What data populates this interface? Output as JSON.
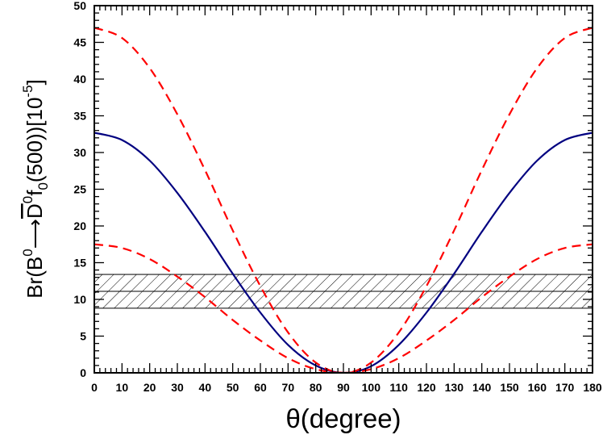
{
  "chart_data": {
    "type": "line",
    "title": "",
    "xlabel": "θ(degree)",
    "ylabel": {
      "prefix": "Br(B",
      "sup1": "0",
      "arrow": "⟶",
      "dbar": "D",
      "sup2": "0",
      "f": "f",
      "sub": "0",
      "mass": "(500))[10",
      "exp": "-5",
      "close": "]"
    },
    "xlim": [
      0,
      180
    ],
    "ylim": [
      0,
      50
    ],
    "xticks": [
      "0",
      "10",
      "20",
      "30",
      "40",
      "50",
      "60",
      "70",
      "80",
      "90",
      "100",
      "110",
      "120",
      "130",
      "140",
      "150",
      "160",
      "170",
      "180"
    ],
    "yticks": [
      "0",
      "5",
      "10",
      "15",
      "20",
      "25",
      "30",
      "35",
      "40",
      "45",
      "50"
    ],
    "grid": false,
    "legend": "none",
    "x": [
      0,
      10,
      20,
      30,
      40,
      50,
      60,
      70,
      80,
      90,
      100,
      110,
      120,
      130,
      140,
      150,
      160,
      170,
      180
    ],
    "series": [
      {
        "style": "solid",
        "color": "#000080",
        "values": [
          32.7,
          31.7,
          28.9,
          24.5,
          19.2,
          13.5,
          8.2,
          3.8,
          1.0,
          0,
          0.9,
          3.8,
          8.2,
          13.5,
          19.2,
          24.5,
          28.9,
          31.7,
          32.7
        ]
      },
      {
        "style": "dashed",
        "color": "#ff0000",
        "values": [
          47.0,
          45.6,
          41.5,
          35.2,
          27.6,
          19.4,
          11.8,
          5.5,
          1.4,
          0,
          1.4,
          5.5,
          11.8,
          19.4,
          27.6,
          35.2,
          41.5,
          45.6,
          47.0
        ]
      },
      {
        "style": "dashed",
        "color": "#ff0000",
        "values": [
          17.5,
          17.0,
          15.5,
          13.1,
          10.3,
          7.2,
          4.4,
          2.0,
          0.5,
          0,
          0.5,
          2.0,
          4.4,
          7.2,
          10.3,
          13.1,
          15.5,
          17.0,
          17.5
        ]
      }
    ],
    "band": {
      "low": 8.8,
      "center": 11.1,
      "high": 13.4,
      "pattern": "hatched"
    }
  }
}
